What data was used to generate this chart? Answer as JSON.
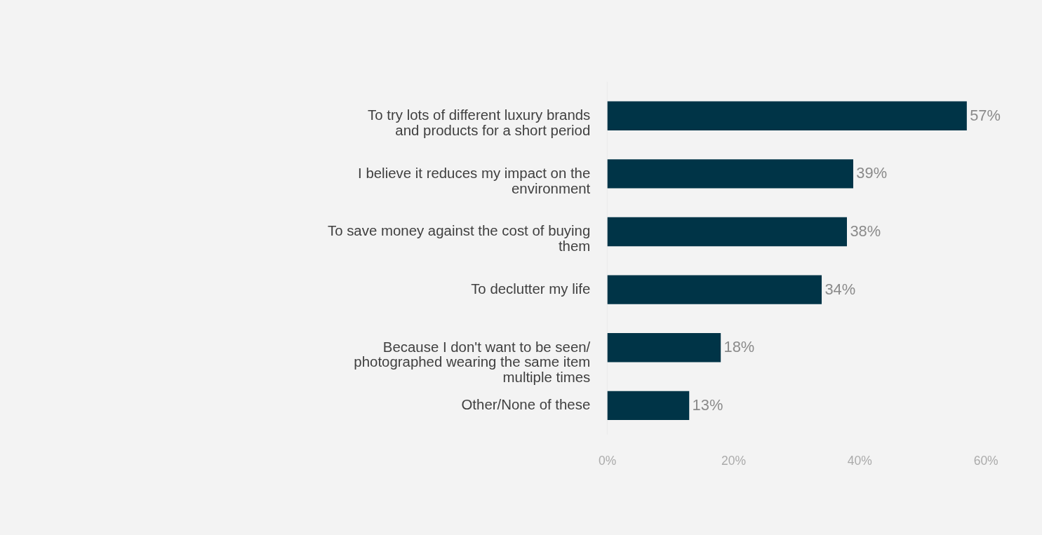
{
  "chart_data": {
    "type": "bar",
    "orientation": "horizontal",
    "categories": [
      "To try lots of different luxury brands and products for a short period",
      "I believe it reduces my impact on the environment",
      "To save money against the cost of buying them",
      "To declutter my life",
      "Because I don't want to be seen/ photographed wearing the same item multiple times",
      "Other/None of these"
    ],
    "values": [
      57,
      39,
      38,
      34,
      18,
      13
    ],
    "value_labels": [
      "57%",
      "39%",
      "38%",
      "34%",
      "18%",
      "13%"
    ],
    "color": "#003447",
    "xlim": [
      0,
      60
    ],
    "xticks": [
      {
        "value": 0,
        "label": "0%"
      },
      {
        "value": 20,
        "label": "20%"
      },
      {
        "value": 40,
        "label": "40%"
      },
      {
        "value": 60,
        "label": "60%"
      }
    ],
    "grid": false
  }
}
